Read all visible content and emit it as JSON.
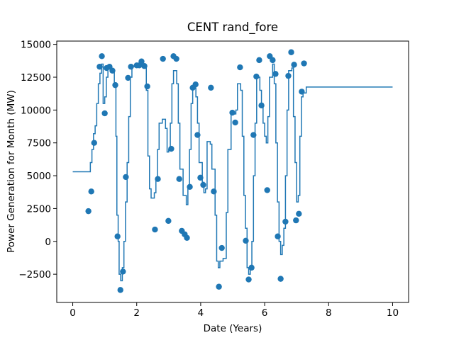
{
  "chart_data": {
    "type": "scatter",
    "title": "CENT rand_fore",
    "x_label": "Date (Years)",
    "y_label": "Power Generation for Month (MW)",
    "xlim": [
      -0.5,
      10.5
    ],
    "ylim": [
      -4650,
      15250
    ],
    "xticks": [
      0,
      2,
      4,
      6,
      8,
      10
    ],
    "yticks": [
      {
        "value": -2500,
        "label": "−2500"
      },
      0,
      2500,
      5000,
      7500,
      10000,
      12500,
      15000
    ],
    "series": [
      {
        "type": "step",
        "color": "#1f77b4",
        "x": [
          0,
          0.55,
          0.6,
          0.65,
          0.7,
          0.75,
          0.8,
          0.85,
          0.9,
          0.95,
          1.0,
          1.05,
          1.1,
          1.2,
          1.3,
          1.35,
          1.38,
          1.42,
          1.45,
          1.5,
          1.55,
          1.6,
          1.65,
          1.7,
          1.75,
          1.8,
          1.85,
          2.0,
          2.1,
          2.2,
          2.3,
          2.35,
          2.4,
          2.45,
          2.55,
          2.6,
          2.65,
          2.7,
          2.8,
          2.9,
          2.95,
          3.0,
          3.05,
          3.1,
          3.15,
          3.25,
          3.3,
          3.35,
          3.45,
          3.55,
          3.6,
          3.65,
          3.7,
          3.75,
          3.85,
          3.9,
          3.95,
          4.05,
          4.1,
          4.15,
          4.2,
          4.3,
          4.35,
          4.45,
          4.5,
          4.55,
          4.6,
          4.7,
          4.8,
          4.85,
          4.95,
          5.1,
          5.15,
          5.25,
          5.3,
          5.35,
          5.4,
          5.45,
          5.5,
          5.55,
          5.6,
          5.65,
          5.7,
          5.75,
          5.85,
          5.9,
          5.95,
          6.0,
          6.05,
          6.1,
          6.15,
          6.25,
          6.3,
          6.35,
          6.4,
          6.45,
          6.5,
          6.55,
          6.6,
          6.65,
          6.7,
          6.75,
          6.85,
          6.9,
          6.95,
          7.0,
          7.05,
          7.1,
          7.15,
          7.2,
          7.3,
          10.0
        ],
        "values": [
          5300,
          6000,
          7000,
          8200,
          8800,
          10500,
          12000,
          12800,
          13500,
          10500,
          11000,
          12500,
          13200,
          13000,
          12000,
          8000,
          2000,
          0,
          -2500,
          -3000,
          -2000,
          0,
          3000,
          6000,
          9500,
          12500,
          13300,
          13400,
          13600,
          13200,
          11500,
          6500,
          4000,
          3300,
          3700,
          4800,
          7000,
          9000,
          9300,
          8600,
          6800,
          7000,
          9000,
          12000,
          13000,
          12000,
          9000,
          5500,
          3500,
          2800,
          4000,
          7000,
          10500,
          11700,
          11000,
          9000,
          6000,
          4500,
          3700,
          4000,
          7600,
          7400,
          5500,
          2000,
          -1500,
          -2000,
          -1500,
          -1300,
          2200,
          7000,
          9700,
          10000,
          12000,
          11500,
          8000,
          3500,
          1000,
          -2000,
          -2500,
          -2000,
          0,
          5000,
          9000,
          12500,
          11500,
          10500,
          9000,
          8000,
          7500,
          9500,
          12500,
          13500,
          12000,
          7500,
          3000,
          0,
          -1000,
          -300,
          1000,
          5000,
          10000,
          13000,
          13200,
          9500,
          6000,
          3000,
          3500,
          8000,
          11000,
          11300,
          11750,
          11750
        ]
      },
      {
        "type": "scatter",
        "color": "#1f77b4",
        "x": [
          0.49,
          0.58,
          0.67,
          0.84,
          0.91,
          1.0,
          1.06,
          1.15,
          1.24,
          1.33,
          1.4,
          1.49,
          1.57,
          1.66,
          1.73,
          1.82,
          2.0,
          2.08,
          2.15,
          2.24,
          2.33,
          2.57,
          2.66,
          2.82,
          2.99,
          3.08,
          3.15,
          3.24,
          3.33,
          3.41,
          3.5,
          3.57,
          3.66,
          3.75,
          3.84,
          3.9,
          3.99,
          4.08,
          4.32,
          4.41,
          4.57,
          4.66,
          4.99,
          5.08,
          5.23,
          5.41,
          5.5,
          5.59,
          5.65,
          5.74,
          5.83,
          5.9,
          6.08,
          6.16,
          6.25,
          6.34,
          6.41,
          6.5,
          6.65,
          6.74,
          6.83,
          6.92,
          6.98,
          7.07,
          7.16,
          7.23
        ],
        "values": [
          2300,
          3800,
          7500,
          13300,
          14100,
          9750,
          13200,
          13300,
          13000,
          11900,
          380,
          -3700,
          -2300,
          4900,
          12450,
          13300,
          13400,
          13400,
          13700,
          13350,
          11800,
          900,
          4750,
          13900,
          1560,
          7050,
          14100,
          13900,
          4750,
          800,
          540,
          270,
          4150,
          11700,
          11950,
          8100,
          4850,
          4300,
          11700,
          3800,
          -3450,
          -500,
          9800,
          9050,
          13250,
          50,
          -2900,
          -2000,
          8100,
          12550,
          13800,
          10350,
          3900,
          14100,
          13800,
          12750,
          380,
          -2850,
          1500,
          12600,
          14400,
          13450,
          1600,
          2100,
          11400,
          13550
        ]
      }
    ]
  }
}
